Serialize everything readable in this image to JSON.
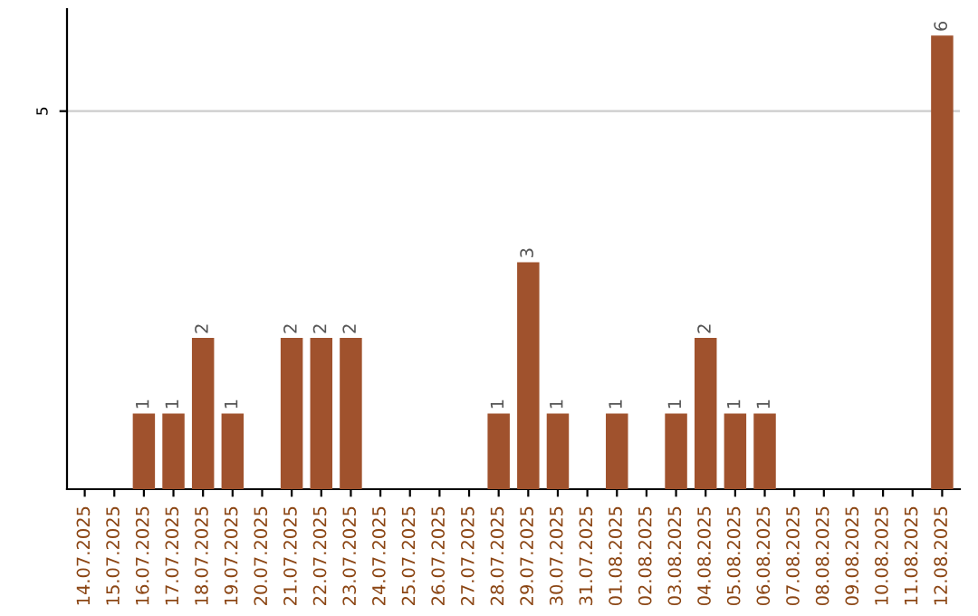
{
  "chart_data": {
    "type": "bar",
    "categories": [
      "14.07.2025",
      "15.07.2025",
      "16.07.2025",
      "17.07.2025",
      "18.07.2025",
      "19.07.2025",
      "20.07.2025",
      "21.07.2025",
      "22.07.2025",
      "23.07.2025",
      "24.07.2025",
      "25.07.2025",
      "26.07.2025",
      "27.07.2025",
      "28.07.2025",
      "29.07.2025",
      "30.07.2025",
      "31.07.2025",
      "01.08.2025",
      "02.08.2025",
      "03.08.2025",
      "04.08.2025",
      "05.08.2025",
      "06.08.2025",
      "07.08.2025",
      "08.08.2025",
      "09.08.2025",
      "10.08.2025",
      "11.08.2025",
      "12.08.2025"
    ],
    "values": [
      0,
      0,
      1,
      1,
      2,
      1,
      0,
      2,
      2,
      2,
      0,
      0,
      0,
      0,
      1,
      3,
      1,
      0,
      1,
      0,
      1,
      2,
      1,
      1,
      0,
      0,
      0,
      0,
      0,
      6
    ],
    "value_labels": [
      null,
      null,
      "1",
      "1",
      "2",
      "1",
      null,
      "2",
      "2",
      "2",
      null,
      null,
      null,
      null,
      "1",
      "3",
      "1",
      null,
      "1",
      null,
      "1",
      "2",
      "1",
      "1",
      null,
      null,
      null,
      null,
      null,
      "6"
    ],
    "color": "#a0522d",
    "ylim": [
      0,
      6.35
    ],
    "yticks": [
      5
    ],
    "grid": "y"
  }
}
